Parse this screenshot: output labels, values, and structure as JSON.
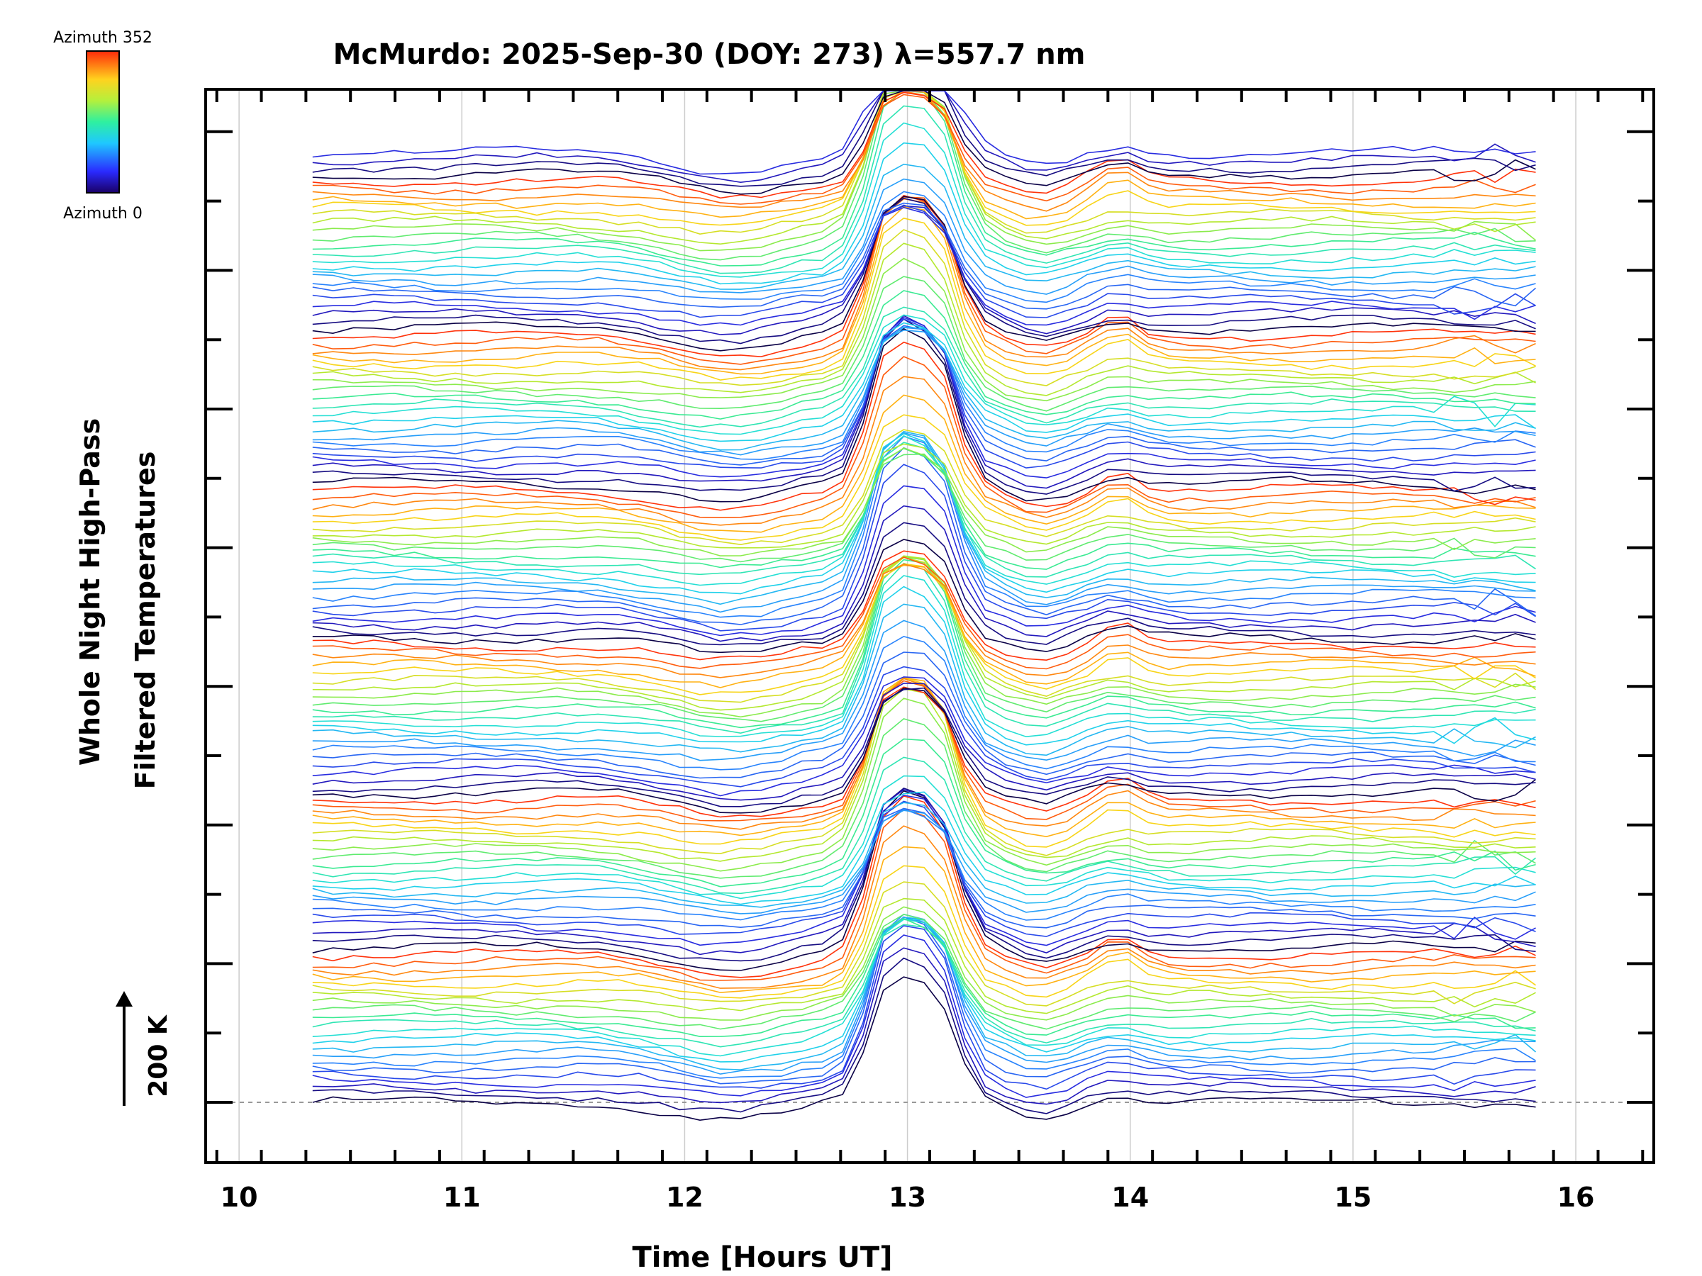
{
  "chart_data": {
    "type": "line",
    "title": "McMurdo: 2025-Sep-30 (DOY: 273) λ=557.7 nm",
    "xlabel": "Time [Hours UT]",
    "ylabel_line1": "Whole Night High-Pass",
    "ylabel_line2": "Filtered Temperatures",
    "xlim": [
      9.85,
      16.35
    ],
    "xticks": [
      "10",
      "11",
      "12",
      "13",
      "14",
      "15",
      "16"
    ],
    "x_start": 10.33,
    "x_end": 15.82,
    "scale_bar": {
      "label": "200 K",
      "value": 200
    },
    "colorbar": {
      "max_label": "Azimuth  352",
      "min_label": "Azimuth  0",
      "min": 0,
      "max": 352
    },
    "series_count": 136,
    "notes": "Stacked traces, one per azimuth, all showing a large temperature peak near 12.9–13.2 UT; colour cycles blue→red per sweep.",
    "colors": {
      "axis": "#000000",
      "grid": "#cccccc",
      "baseline": "#999999"
    }
  }
}
